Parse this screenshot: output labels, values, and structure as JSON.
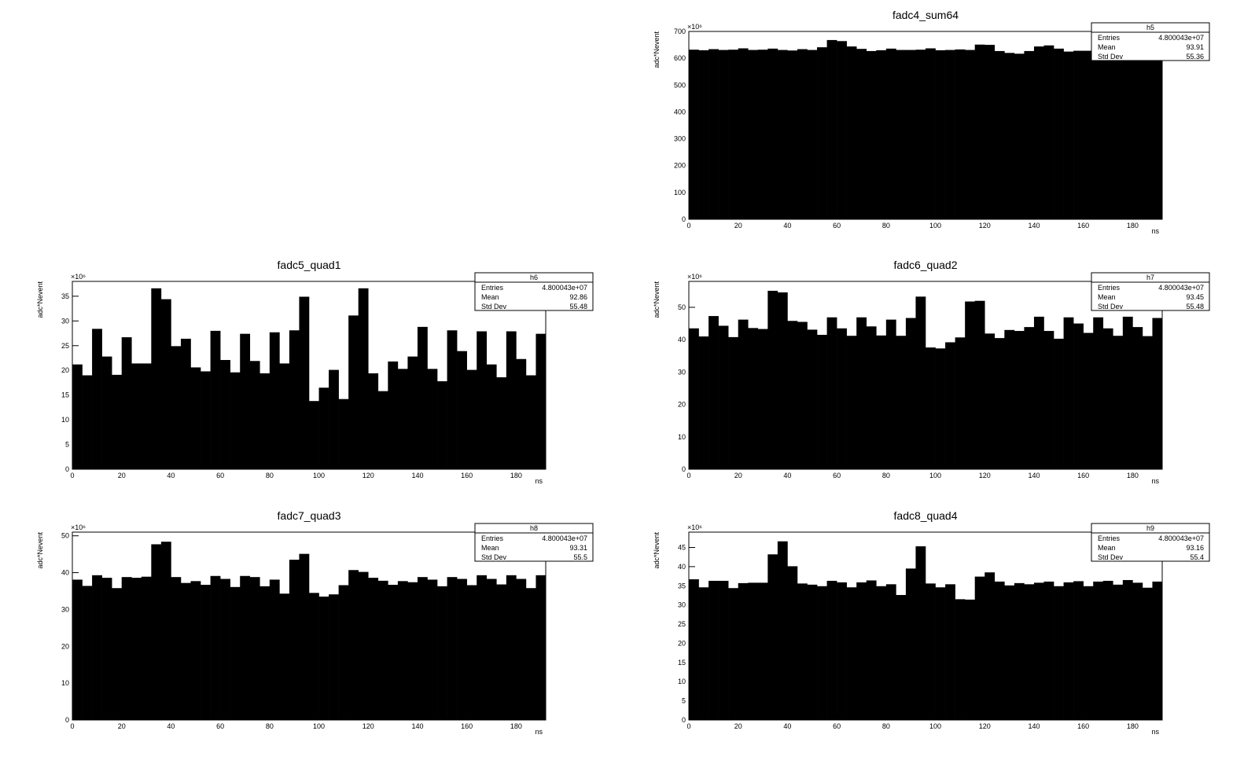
{
  "chart_data": [
    {
      "type": "bar",
      "histogram_name": "h5",
      "title": "fadc4_sum64",
      "xlabel": "ns",
      "ylabel": "adc*Nevent",
      "exponent": "×10⁶",
      "xlim": [
        0,
        192
      ],
      "ylim": [
        0,
        700
      ],
      "x_ticks": [
        0,
        20,
        40,
        60,
        80,
        100,
        120,
        140,
        160,
        180
      ],
      "y_ticks": [
        0,
        100,
        200,
        300,
        400,
        500,
        600,
        700
      ],
      "bin_width": 4,
      "stats": {
        "entries_label": "Entries",
        "entries": "4.800043e+07",
        "mean_label": "Mean",
        "mean": "93.91",
        "std_label": "Std Dev",
        "std": "55.36"
      },
      "values": [
        632,
        630,
        634,
        631,
        632,
        637,
        631,
        632,
        636,
        631,
        629,
        634,
        631,
        641,
        668,
        664,
        644,
        635,
        627,
        630,
        636,
        631,
        631,
        632,
        637,
        630,
        631,
        633,
        631,
        651,
        650,
        627,
        620,
        617,
        627,
        644,
        648,
        636,
        625,
        628,
        628,
        632,
        634,
        629,
        628,
        628,
        634,
        630
      ]
    },
    {
      "type": "bar",
      "histogram_name": "h6",
      "title": "fadc5_quad1",
      "xlabel": "ns",
      "ylabel": "adc*Nevent",
      "exponent": "×10⁶",
      "xlim": [
        0,
        192
      ],
      "ylim": [
        0,
        38
      ],
      "x_ticks": [
        0,
        20,
        40,
        60,
        80,
        100,
        120,
        140,
        160,
        180
      ],
      "y_ticks": [
        0,
        5,
        10,
        15,
        20,
        25,
        30,
        35
      ],
      "bin_width": 4,
      "stats": {
        "entries_label": "Entries",
        "entries": "4.800043e+07",
        "mean_label": "Mean",
        "mean": "92.86",
        "std_label": "Std Dev",
        "std": "55.48"
      },
      "values": [
        21.2,
        19,
        28.4,
        22.8,
        19.1,
        26.7,
        21.4,
        21.4,
        36.6,
        34.4,
        24.9,
        26.4,
        20.6,
        19.8,
        28,
        22.1,
        19.6,
        27.4,
        21.9,
        19.4,
        27.7,
        21.4,
        28.1,
        34.9,
        13.8,
        16.5,
        20.1,
        14.2,
        31.1,
        36.6,
        19.4,
        15.8,
        21.8,
        20.3,
        22.8,
        28.8,
        20.3,
        17.8,
        28.1,
        23.9,
        20.1,
        27.9,
        21.2,
        18.6,
        27.9,
        22.3,
        19,
        27.4
      ]
    },
    {
      "type": "bar",
      "histogram_name": "h7",
      "title": "fadc6_quad2",
      "xlabel": "ns",
      "ylabel": "adc*Nevent",
      "exponent": "×10⁶",
      "xlim": [
        0,
        192
      ],
      "ylim": [
        0,
        58
      ],
      "x_ticks": [
        0,
        20,
        40,
        60,
        80,
        100,
        120,
        140,
        160,
        180
      ],
      "y_ticks": [
        0,
        10,
        20,
        30,
        40,
        50
      ],
      "bin_width": 4,
      "stats": {
        "entries_label": "Entries",
        "entries": "4.800043e+07",
        "mean_label": "Mean",
        "mean": "93.45",
        "std_label": "Std Dev",
        "std": "55.48"
      },
      "values": [
        43.5,
        41,
        47.3,
        44.3,
        40.8,
        46.2,
        43.6,
        43.3,
        55.1,
        54.6,
        45.8,
        45.5,
        43.1,
        41.5,
        46.9,
        43.5,
        41.2,
        46.9,
        44.1,
        41.3,
        46.2,
        41.2,
        46.7,
        53.3,
        37.6,
        37.3,
        39.2,
        40.7,
        51.8,
        52,
        41.9,
        40.5,
        43,
        42.7,
        43.9,
        47.1,
        42.7,
        40.3,
        46.9,
        45,
        42.1,
        46.9,
        43.5,
        41.2,
        47.1,
        43.9,
        41.1,
        46.7
      ]
    },
    {
      "type": "bar",
      "histogram_name": "h8",
      "title": "fadc7_quad3",
      "xlabel": "ns",
      "ylabel": "adc*Nevent",
      "exponent": "×10⁶",
      "xlim": [
        0,
        192
      ],
      "ylim": [
        0,
        51
      ],
      "x_ticks": [
        0,
        20,
        40,
        60,
        80,
        100,
        120,
        140,
        160,
        180
      ],
      "y_ticks": [
        0,
        10,
        20,
        30,
        40,
        50
      ],
      "bin_width": 4,
      "stats": {
        "entries_label": "Entries",
        "entries": "4.800043e+07",
        "mean_label": "Mean",
        "mean": "93.31",
        "std_label": "Std Dev",
        "std": "55.5"
      },
      "values": [
        38.1,
        36.4,
        39.3,
        38.6,
        35.8,
        38.8,
        38.6,
        38.9,
        47.7,
        48.4,
        38.8,
        37.2,
        37.7,
        36.7,
        39.1,
        38.3,
        36.1,
        39.1,
        38.8,
        36.3,
        38.1,
        34.3,
        43.5,
        45.1,
        34.5,
        33.5,
        34.1,
        36.6,
        40.7,
        40.2,
        38.6,
        37.8,
        36.7,
        37.7,
        37.4,
        38.8,
        38.1,
        36.3,
        38.8,
        38.3,
        36.6,
        39.3,
        38.3,
        36.8,
        39.3,
        38.3,
        35.8,
        39.3
      ]
    },
    {
      "type": "bar",
      "histogram_name": "h9",
      "title": "fadc8_quad4",
      "xlabel": "ns",
      "ylabel": "adc*Nevent",
      "exponent": "×10⁶",
      "xlim": [
        0,
        192
      ],
      "ylim": [
        0,
        49
      ],
      "x_ticks": [
        0,
        20,
        40,
        60,
        80,
        100,
        120,
        140,
        160,
        180
      ],
      "y_ticks": [
        0,
        5,
        10,
        15,
        20,
        25,
        30,
        35,
        40,
        45
      ],
      "bin_width": 4,
      "stats": {
        "entries_label": "Entries",
        "entries": "4.800043e+07",
        "mean_label": "Mean",
        "mean": "93.16",
        "std_label": "Std Dev",
        "std": "55.4"
      },
      "values": [
        36.7,
        34.6,
        36.3,
        36.3,
        34.4,
        35.7,
        35.8,
        35.8,
        43.2,
        46.6,
        40.1,
        35.6,
        35.3,
        34.9,
        36.3,
        35.9,
        34.6,
        35.9,
        36.4,
        34.9,
        35.4,
        32.6,
        39.5,
        45.3,
        35.6,
        34.6,
        35.4,
        31.5,
        31.4,
        37.4,
        38.5,
        36.1,
        35.1,
        35.7,
        35.4,
        35.8,
        36.1,
        34.9,
        35.9,
        36.2,
        34.9,
        36.1,
        36.3,
        35.3,
        36.5,
        35.8,
        34.5,
        36.1
      ]
    }
  ]
}
